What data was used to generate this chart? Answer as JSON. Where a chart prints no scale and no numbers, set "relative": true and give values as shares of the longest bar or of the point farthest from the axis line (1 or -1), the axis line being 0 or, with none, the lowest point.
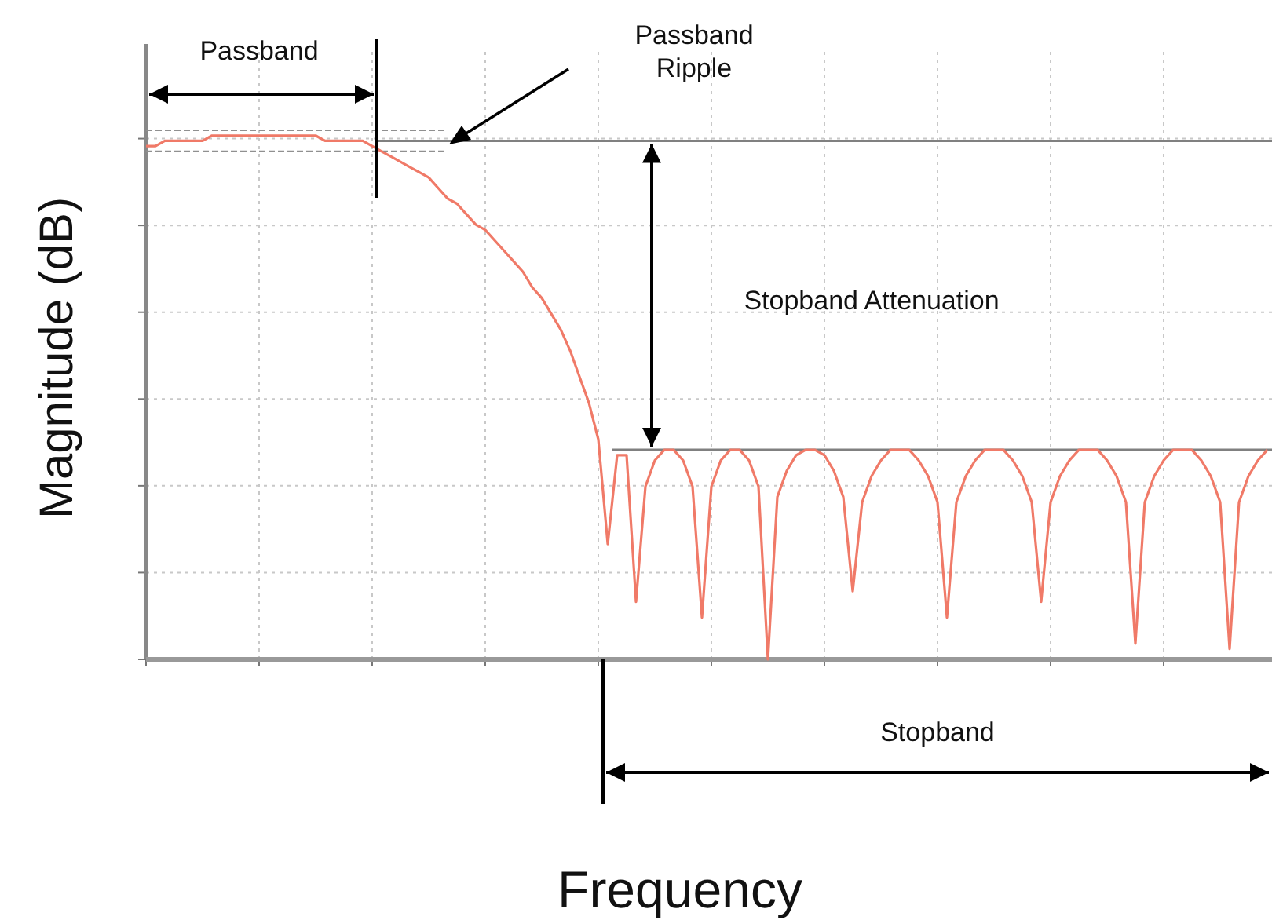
{
  "chart_data": {
    "type": "line",
    "relative": true,
    "xlabel": "Frequency",
    "ylabel": "Magnitude (dB)",
    "categories": [
      null,
      null,
      null,
      null,
      null,
      null,
      null,
      null,
      null,
      null,
      null,
      null,
      null,
      null,
      null,
      null,
      null,
      null,
      null,
      null,
      null,
      null,
      null,
      null,
      null,
      null,
      null,
      null,
      null,
      null,
      null,
      null,
      null,
      null,
      null,
      null,
      null,
      null,
      null,
      null,
      null,
      null,
      null,
      null,
      null,
      null,
      null,
      null,
      null,
      null,
      null,
      null,
      null,
      null,
      null,
      null,
      null,
      null,
      null,
      null,
      null,
      null,
      null,
      null,
      null,
      null,
      null,
      null,
      null,
      null,
      null,
      null,
      null,
      null,
      null,
      null,
      null,
      null,
      null,
      null,
      null,
      null,
      null,
      null,
      null,
      null,
      null,
      null,
      null,
      null,
      null,
      null,
      null,
      null,
      null,
      null,
      null,
      null,
      null,
      null,
      null,
      null,
      null,
      null,
      null,
      null,
      null,
      null,
      null,
      null,
      null,
      null,
      null,
      null,
      null,
      null,
      null,
      null,
      null,
      null
    ],
    "series": [
      {
        "color": "#f07a68",
        "values": [
          0.98,
          0.98,
          0.99,
          0.99,
          0.99,
          0.99,
          0.99,
          1,
          1,
          1,
          1,
          1,
          1,
          1,
          1,
          1,
          1,
          1,
          1,
          0.99,
          0.99,
          0.99,
          0.99,
          0.99,
          0.98,
          0.97,
          0.96,
          0.95,
          0.94,
          0.93,
          0.92,
          0.9,
          0.88,
          0.87,
          0.85,
          0.83,
          0.82,
          0.8,
          0.78,
          0.76,
          0.74,
          0.71,
          0.69,
          0.66,
          0.63,
          0.59,
          0.54,
          0.49,
          0.42,
          0.22,
          0.39,
          0.39,
          0.11,
          0.33,
          0.38,
          0.4,
          0.4,
          0.38,
          0.33,
          0.08,
          0.33,
          0.38,
          0.4,
          0.4,
          0.38,
          0.33,
          0,
          0.31,
          0.36,
          0.39,
          0.4,
          0.4,
          0.39,
          0.36,
          0.31,
          0.13,
          0.3,
          0.35,
          0.38,
          0.4,
          0.4,
          0.4,
          0.38,
          0.35,
          0.3,
          0.08,
          0.3,
          0.35,
          0.38,
          0.4,
          0.4,
          0.4,
          0.38,
          0.35,
          0.3,
          0.11,
          0.3,
          0.35,
          0.38,
          0.4,
          0.4,
          0.4,
          0.38,
          0.35,
          0.3,
          0.03,
          0.3,
          0.35,
          0.38,
          0.4,
          0.4,
          0.4,
          0.38,
          0.35,
          0.3,
          0.02,
          0.3,
          0.35,
          0.38,
          0.4
        ]
      }
    ],
    "ref_lines": [
      {
        "axis": "y",
        "value": 0.99,
        "color": "#808080"
      },
      {
        "axis": "y",
        "value": 0.4,
        "color": "#808080"
      },
      {
        "axis": "y",
        "value": 0.97,
        "color": "#909090",
        "line_style": "dashed"
      },
      {
        "axis": "y",
        "value": 1.01,
        "color": "#909090",
        "line_style": "dashed"
      }
    ],
    "annotations": [
      "Passband",
      "Passband Ripple",
      "Stopband Attenuation",
      "Stopband"
    ],
    "grid": true,
    "marker": "none",
    "line_style": "solid"
  }
}
